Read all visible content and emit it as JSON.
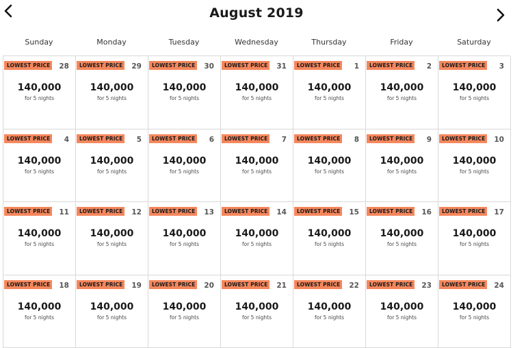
{
  "header": {
    "title": "August 2019",
    "prev_icon": "chevron-left-icon",
    "next_icon": "chevron-right-icon"
  },
  "weekdays": [
    "Sunday",
    "Monday",
    "Tuesday",
    "Wednesday",
    "Thursday",
    "Friday",
    "Saturday"
  ],
  "colors": {
    "badge": "#f5875d",
    "border": "#d8d8d8"
  },
  "days": [
    {
      "day": "28",
      "badge": "LOWEST PRICE",
      "price": "140,000",
      "nights": "for 5 nights"
    },
    {
      "day": "29",
      "badge": "LOWEST PRICE",
      "price": "140,000",
      "nights": "for 5 nights"
    },
    {
      "day": "30",
      "badge": "LOWEST PRICE",
      "price": "140,000",
      "nights": "for 5 nights"
    },
    {
      "day": "31",
      "badge": "LOWEST PRICE",
      "price": "140,000",
      "nights": "for 5 nights"
    },
    {
      "day": "1",
      "badge": "LOWEST PRICE",
      "price": "140,000",
      "nights": "for 5 nights"
    },
    {
      "day": "2",
      "badge": "LOWEST PRICE",
      "price": "140,000",
      "nights": "for 5 nights"
    },
    {
      "day": "3",
      "badge": "LOWEST PRICE",
      "price": "140,000",
      "nights": "for 5 nights"
    },
    {
      "day": "4",
      "badge": "LOWEST PRICE",
      "price": "140,000",
      "nights": "for 5 nights"
    },
    {
      "day": "5",
      "badge": "LOWEST PRICE",
      "price": "140,000",
      "nights": "for 5 nights"
    },
    {
      "day": "6",
      "badge": "LOWEST PRICE",
      "price": "140,000",
      "nights": "for 5 nights"
    },
    {
      "day": "7",
      "badge": "LOWEST PRICE",
      "price": "140,000",
      "nights": "for 5 nights"
    },
    {
      "day": "8",
      "badge": "LOWEST PRICE",
      "price": "140,000",
      "nights": "for 5 nights"
    },
    {
      "day": "9",
      "badge": "LOWEST PRICE",
      "price": "140,000",
      "nights": "for 5 nights"
    },
    {
      "day": "10",
      "badge": "LOWEST PRICE",
      "price": "140,000",
      "nights": "for 5 nights"
    },
    {
      "day": "11",
      "badge": "LOWEST PRICE",
      "price": "140,000",
      "nights": "for 5 nights"
    },
    {
      "day": "12",
      "badge": "LOWEST PRICE",
      "price": "140,000",
      "nights": "for 5 nights"
    },
    {
      "day": "13",
      "badge": "LOWEST PRICE",
      "price": "140,000",
      "nights": "for 5 nights"
    },
    {
      "day": "14",
      "badge": "LOWEST PRICE",
      "price": "140,000",
      "nights": "for 5 nights"
    },
    {
      "day": "15",
      "badge": "LOWEST PRICE",
      "price": "140,000",
      "nights": "for 5 nights"
    },
    {
      "day": "16",
      "badge": "LOWEST PRICE",
      "price": "140,000",
      "nights": "for 5 nights"
    },
    {
      "day": "17",
      "badge": "LOWEST PRICE",
      "price": "140,000",
      "nights": "for 5 nights"
    },
    {
      "day": "18",
      "badge": "LOWEST PRICE",
      "price": "140,000",
      "nights": "for 5 nights"
    },
    {
      "day": "19",
      "badge": "LOWEST PRICE",
      "price": "140,000",
      "nights": "for 5 nights"
    },
    {
      "day": "20",
      "badge": "LOWEST PRICE",
      "price": "140,000",
      "nights": "for 5 nights"
    },
    {
      "day": "21",
      "badge": "LOWEST PRICE",
      "price": "140,000",
      "nights": "for 5 nights"
    },
    {
      "day": "22",
      "badge": "LOWEST PRICE",
      "price": "140,000",
      "nights": "for 5 nights"
    },
    {
      "day": "23",
      "badge": "LOWEST PRICE",
      "price": "140,000",
      "nights": "for 5 nights"
    },
    {
      "day": "24",
      "badge": "LOWEST PRICE",
      "price": "140,000",
      "nights": "for 5 nights"
    }
  ]
}
